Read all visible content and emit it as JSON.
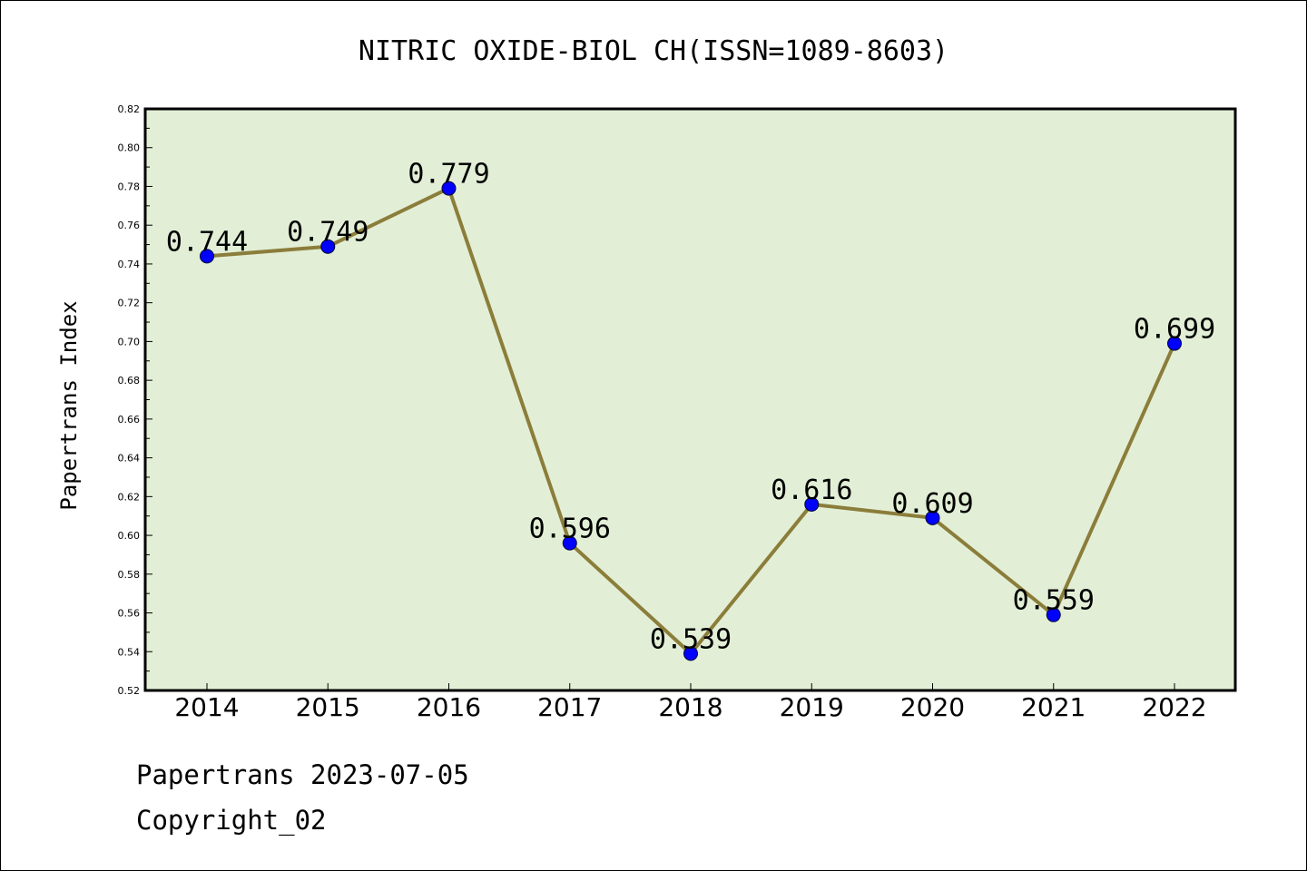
{
  "chart_data": {
    "type": "line",
    "title": "NITRIC OXIDE-BIOL CH(ISSN=1089-8603)",
    "xlabel": "",
    "ylabel": "Papertrans Index",
    "categories": [
      "2014",
      "2015",
      "2016",
      "2017",
      "2018",
      "2019",
      "2020",
      "2021",
      "2022"
    ],
    "values": [
      0.744,
      0.749,
      0.779,
      0.596,
      0.539,
      0.616,
      0.609,
      0.559,
      0.699
    ],
    "data_labels": [
      "0.744",
      "0.749",
      "0.779",
      "0.596",
      "0.539",
      "0.616",
      "0.609",
      "0.559",
      "0.699"
    ],
    "ylim": [
      0.52,
      0.82
    ],
    "yticks": [
      "0.52",
      "0.54",
      "0.56",
      "0.58",
      "0.60",
      "0.62",
      "0.64",
      "0.66",
      "0.68",
      "0.70",
      "0.72",
      "0.74",
      "0.76",
      "0.78",
      "0.80",
      "0.82"
    ],
    "grid": false,
    "colors": {
      "plot_background": "#e2efd6",
      "line": "#8b7d3a",
      "marker": "#0000ff"
    }
  },
  "footer": {
    "source": "Papertrans 2023-07-05",
    "copyright": "Copyright_02"
  }
}
